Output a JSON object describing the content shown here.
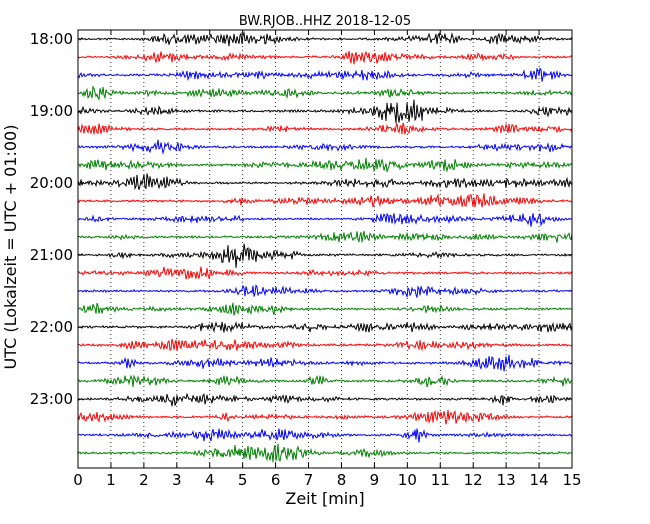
{
  "chart_data": {
    "type": "line",
    "title": "BW.RJOB..HHZ 2018-12-05",
    "xlabel": "Zeit  [min]",
    "ylabel": "UTC (Lokalzeit = UTC + 01:00)",
    "xlim": [
      0,
      15
    ],
    "x_ticks": [
      "0",
      "1",
      "2",
      "3",
      "4",
      "5",
      "6",
      "7",
      "8",
      "9",
      "10",
      "11",
      "12",
      "13",
      "14",
      "15"
    ],
    "y_ticks": [
      "18:00",
      "19:00",
      "20:00",
      "21:00",
      "22:00",
      "23:00"
    ],
    "trace_count": 24,
    "trace_minutes_per_line": 15,
    "trace_colors": [
      "#000000",
      "#ff0000",
      "#0000ff",
      "#008000"
    ],
    "vertical_gridlines": "dotted, every minute"
  }
}
